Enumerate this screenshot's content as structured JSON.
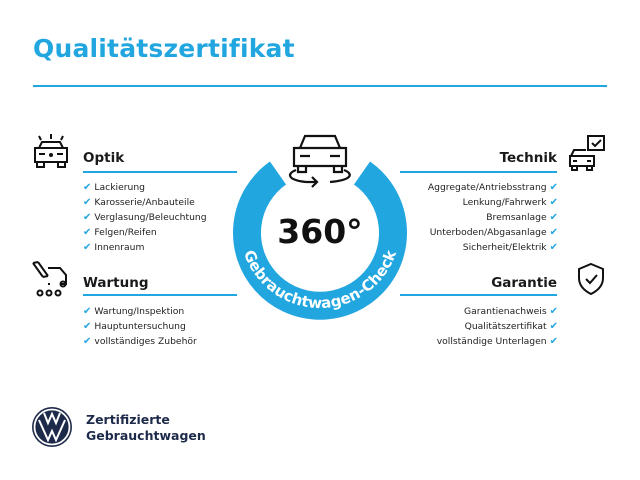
{
  "title": "Qualitätszertifikat",
  "accent_color": "#22a6e0",
  "badge": {
    "value": "360°",
    "ring_text": "Gebrauchtwagen-Check",
    "icon": "car-rotate-icon"
  },
  "sections": {
    "optik": {
      "title": "Optik",
      "icon": "car-lights-icon",
      "items": [
        "Lackierung",
        "Karosserie/Anbauteile",
        "Verglasung/Beleuchtung",
        "Felgen/Reifen",
        "Innenraum"
      ]
    },
    "wartung": {
      "title": "Wartung",
      "icon": "service-van-icon",
      "items": [
        "Wartung/Inspektion",
        "Hauptuntersuchung",
        "vollständiges Zubehör"
      ]
    },
    "technik": {
      "title": "Technik",
      "icon": "car-checklist-icon",
      "items": [
        "Aggregate/Antriebsstrang",
        "Lenkung/Fahrwerk",
        "Bremsanlage",
        "Unterboden/Abgasanlage",
        "Sicherheit/Elektrik"
      ]
    },
    "garantie": {
      "title": "Garantie",
      "icon": "shield-check-icon",
      "items": [
        "Garantienachweis",
        "Qualitätszertifikat",
        "vollständige Unterlagen"
      ]
    }
  },
  "check_mark": "✔",
  "footer": {
    "line1": "Zertifizierte",
    "line2": "Gebrauchtwagen",
    "logo": "vw-logo"
  }
}
